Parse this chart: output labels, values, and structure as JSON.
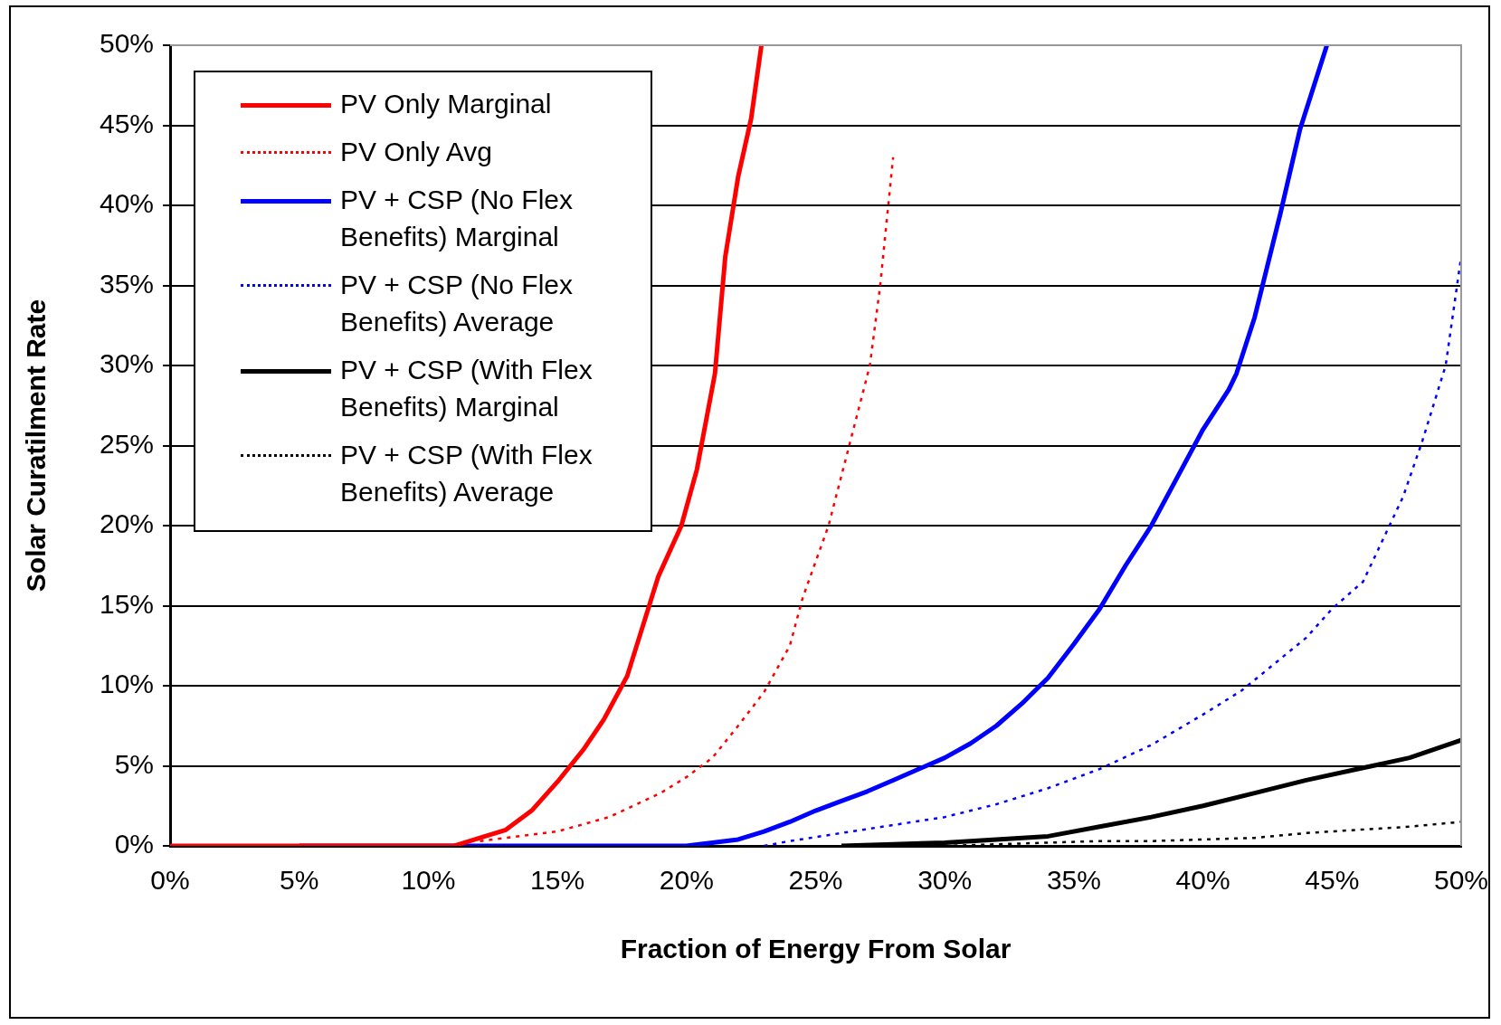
{
  "chart_data": {
    "type": "line",
    "xlabel": "Fraction of Energy From Solar",
    "ylabel": "Solar Curatilment Rate",
    "xlim": [
      0,
      50
    ],
    "ylim": [
      0,
      50
    ],
    "xticks": [
      {
        "value": 0,
        "label": "0%"
      },
      {
        "value": 5,
        "label": "5%"
      },
      {
        "value": 10,
        "label": "10%"
      },
      {
        "value": 15,
        "label": "15%"
      },
      {
        "value": 20,
        "label": "20%"
      },
      {
        "value": 25,
        "label": "25%"
      },
      {
        "value": 30,
        "label": "30%"
      },
      {
        "value": 35,
        "label": "35%"
      },
      {
        "value": 40,
        "label": "40%"
      },
      {
        "value": 45,
        "label": "45%"
      },
      {
        "value": 50,
        "label": "50%"
      }
    ],
    "yticks": [
      {
        "value": 0,
        "label": "0%"
      },
      {
        "value": 5,
        "label": "5%"
      },
      {
        "value": 10,
        "label": "10%"
      },
      {
        "value": 15,
        "label": "15%"
      },
      {
        "value": 20,
        "label": "20%"
      },
      {
        "value": 25,
        "label": "25%"
      },
      {
        "value": 30,
        "label": "30%"
      },
      {
        "value": 35,
        "label": "35%"
      },
      {
        "value": 40,
        "label": "40%"
      },
      {
        "value": 45,
        "label": "45%"
      },
      {
        "value": 50,
        "label": "50%"
      }
    ],
    "grid": "y",
    "legend": "top left",
    "marker": "none",
    "series": [
      {
        "name": "PV Only Marginal",
        "color": "#ff0000",
        "line_style": "solid",
        "x": [
          0,
          11,
          12,
          13,
          14,
          15,
          16,
          16.8,
          17.7,
          18.9,
          19.8,
          20.4,
          21.1,
          21.5,
          22,
          22.5,
          22.9
        ],
        "values": [
          0,
          0,
          0.5,
          1,
          2.2,
          4,
          6,
          7.9,
          10.6,
          16.8,
          20,
          23.5,
          29.5,
          36.8,
          41.8,
          45.4,
          50
        ]
      },
      {
        "name": "PV Only Avg",
        "color": "#ff0000",
        "line_style": "dotted",
        "x": [
          12,
          13,
          15,
          17,
          19,
          20,
          21,
          22,
          23,
          24,
          24.5,
          25.5,
          26.3,
          27.1,
          27.5,
          28
        ],
        "values": [
          0.3,
          0.5,
          0.9,
          1.8,
          3.3,
          4.3,
          5.5,
          7.5,
          9.6,
          12.5,
          15.5,
          20,
          25,
          30,
          35,
          43
        ]
      },
      {
        "name": "PV + CSP (No Flex Benefits) Marginal",
        "color": "#0000ff",
        "line_style": "solid",
        "x": [
          5,
          20,
          21,
          22,
          23,
          24,
          25,
          26,
          27,
          28,
          29,
          30,
          31,
          32,
          33,
          34,
          35,
          36,
          37,
          38,
          39,
          40,
          41,
          41.3,
          42,
          43,
          43.75,
          44.8
        ],
        "values": [
          0,
          0,
          0.2,
          0.4,
          0.9,
          1.5,
          2.2,
          2.8,
          3.4,
          4.1,
          4.8,
          5.5,
          6.4,
          7.5,
          8.9,
          10.5,
          12.6,
          14.8,
          17.5,
          20,
          23,
          26,
          28.5,
          29.5,
          33,
          39.5,
          44.7,
          50
        ]
      },
      {
        "name": "PV + CSP (No Flex Benefits) Average",
        "color": "#0000ff",
        "line_style": "dotted",
        "x": [
          23,
          24,
          26,
          28,
          30,
          32,
          34,
          36,
          38,
          40,
          41.5,
          44,
          45,
          46.2,
          47.75,
          48.5,
          49.4,
          50
        ],
        "values": [
          0,
          0.3,
          0.8,
          1.3,
          1.8,
          2.6,
          3.6,
          4.8,
          6.3,
          8.2,
          9.7,
          13,
          14.8,
          16.5,
          21.8,
          25.3,
          30,
          36.8
        ]
      },
      {
        "name": "PV + CSP (With Flex Benefits)  Marginal",
        "color": "#000000",
        "line_style": "solid",
        "x": [
          26,
          28,
          30,
          32,
          34,
          36,
          38,
          40,
          42,
          44,
          46,
          48,
          50
        ],
        "values": [
          0,
          0.1,
          0.2,
          0.4,
          0.6,
          1.2,
          1.8,
          2.5,
          3.3,
          4.1,
          4.8,
          5.5,
          6.6
        ]
      },
      {
        "name": "PV + CSP (With Flex Benefits) Average",
        "color": "#000000",
        "line_style": "dotted",
        "x": [
          30,
          32,
          34,
          36,
          38,
          40,
          42,
          44,
          46,
          48,
          50
        ],
        "values": [
          0,
          0.1,
          0.2,
          0.3,
          0.3,
          0.4,
          0.5,
          0.8,
          1,
          1.2,
          1.5
        ]
      }
    ]
  }
}
